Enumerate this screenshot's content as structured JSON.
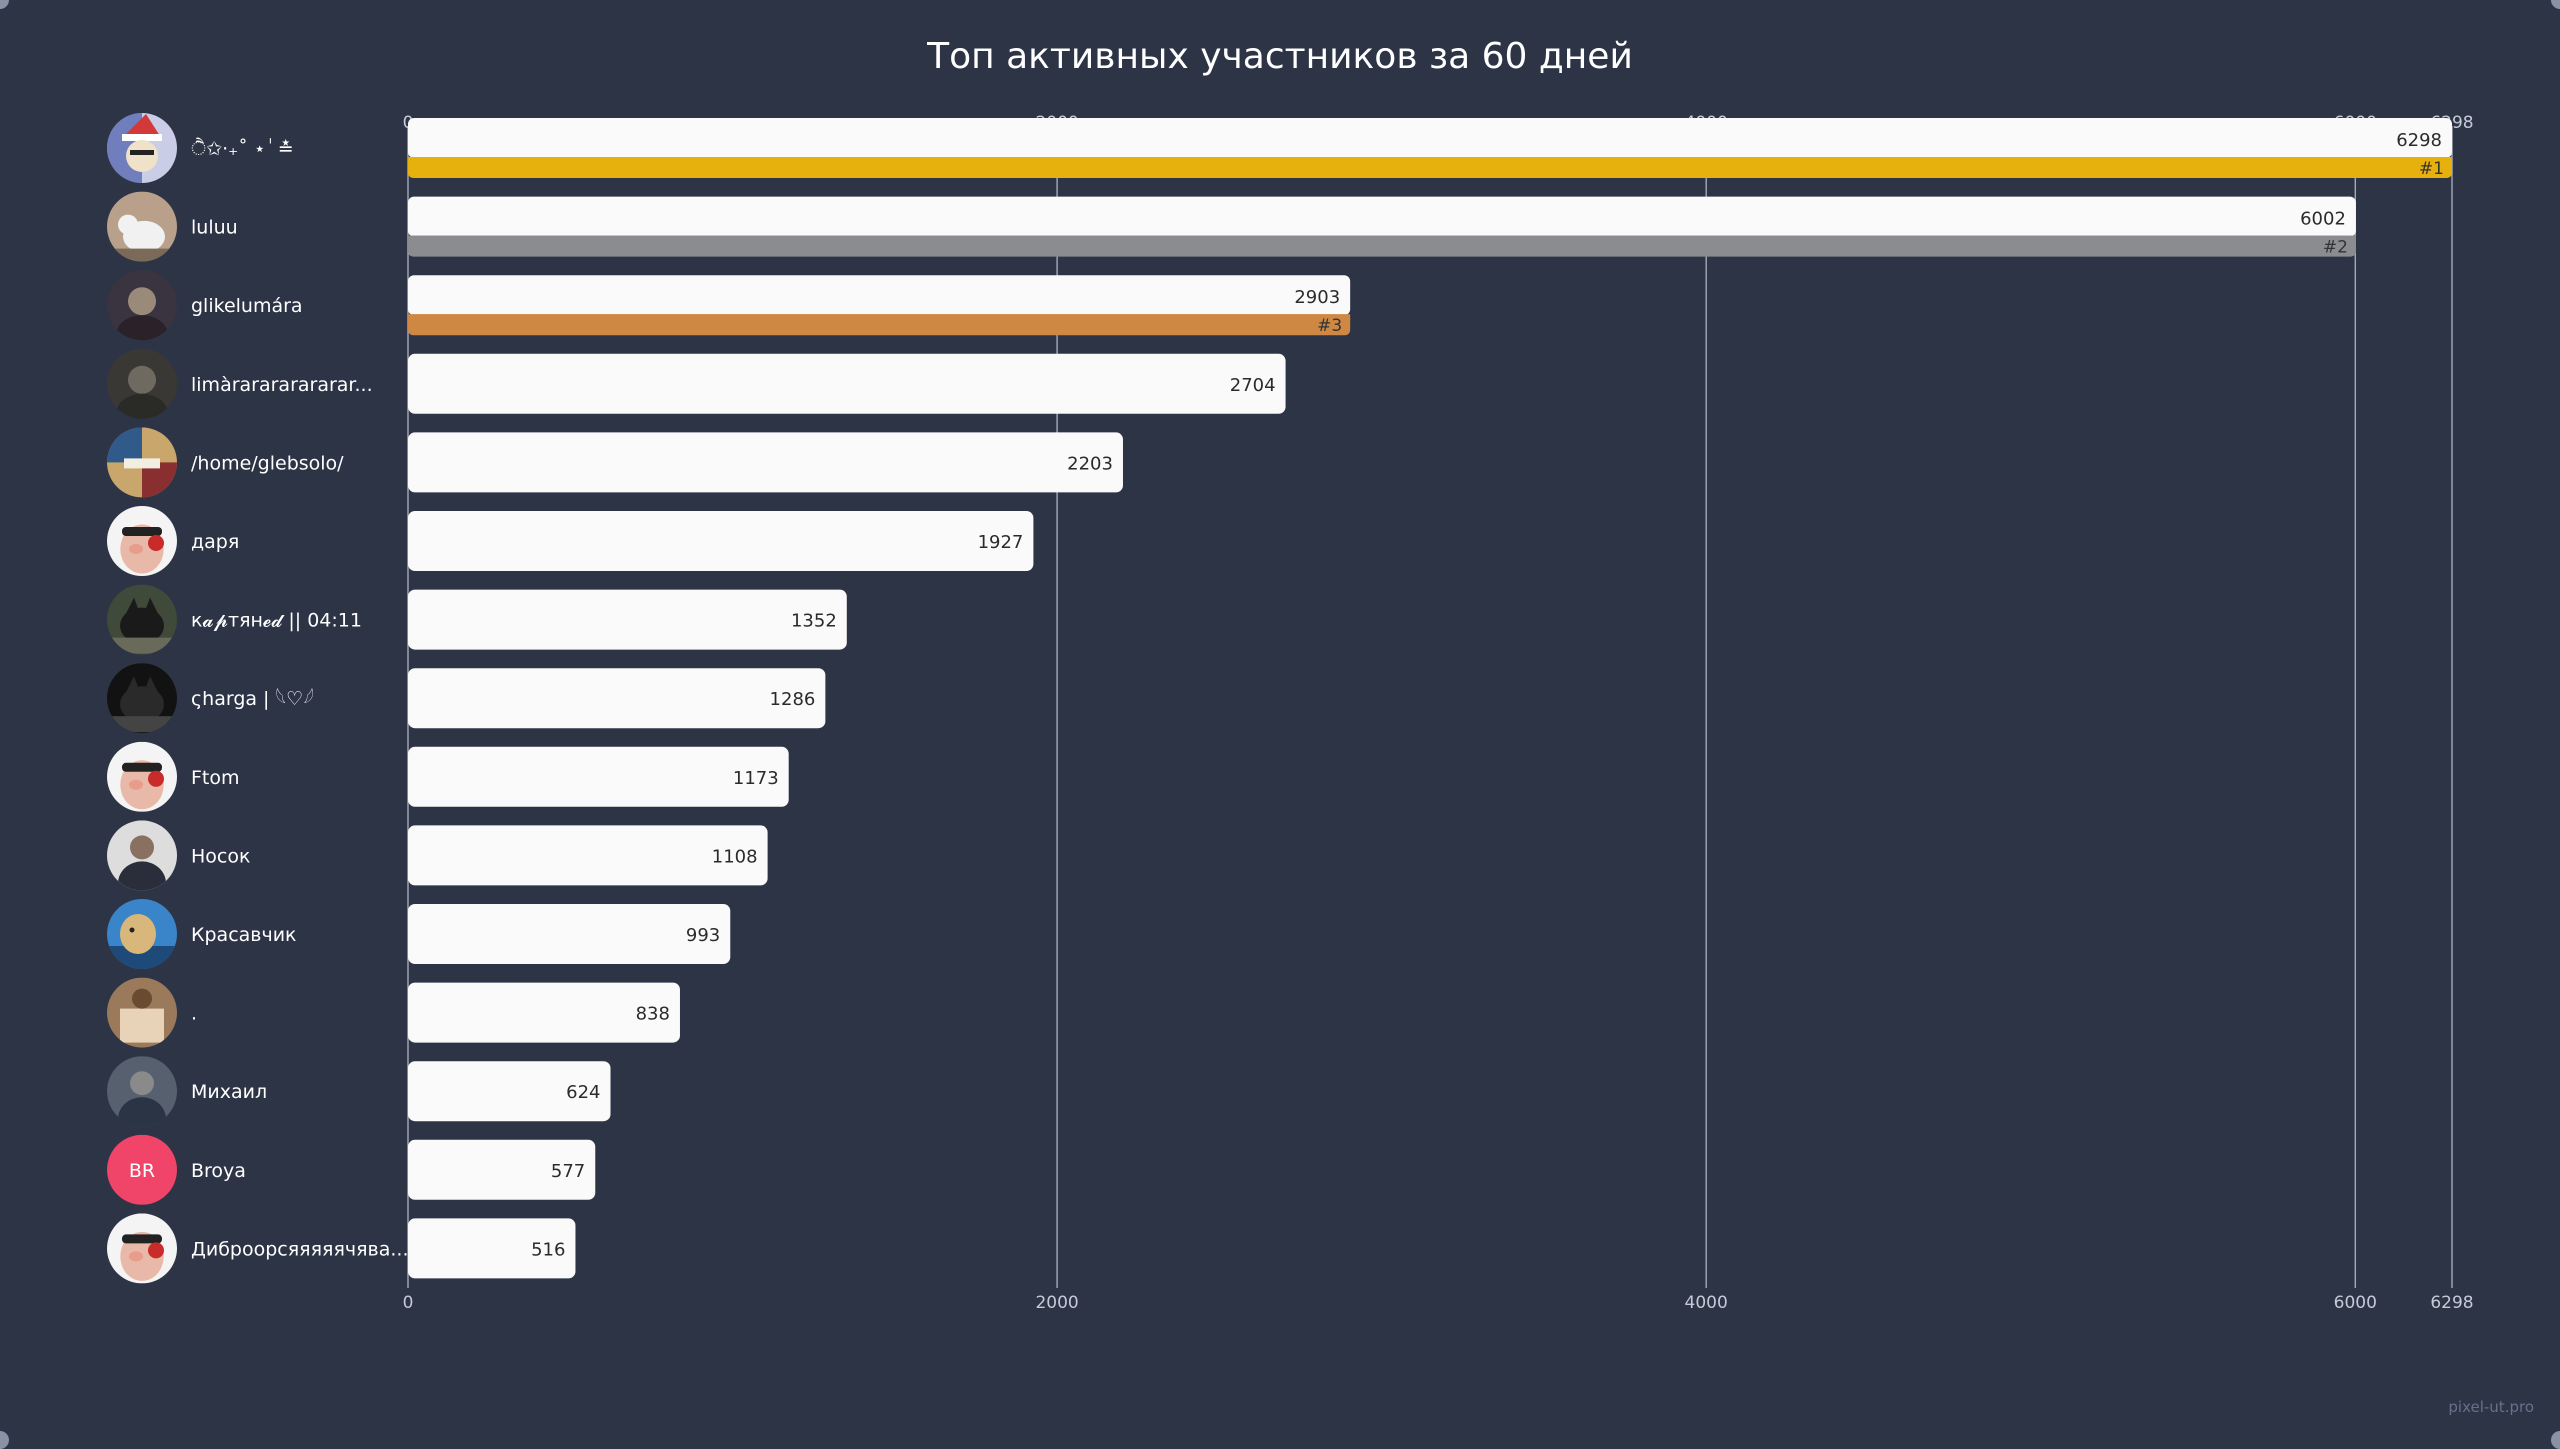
{
  "chart_data": {
    "type": "bar",
    "orientation": "horizontal",
    "title": "Топ активных участников за 60 дней",
    "xlim": [
      0,
      6298
    ],
    "xticks": [
      0,
      2000,
      4000,
      6000,
      6298
    ],
    "grid": true,
    "categories": [
      "ੈ✩‧₊˚ ⋆ ٰ ≛ ͏",
      "luluu",
      "glikelumára",
      "limàrarararararar...",
      "/home/glebsolo/",
      "даря",
      "к𝓪𝓹тян𝓮𝓭 || 04:11",
      "ςharga | 𓆩♡𓆪",
      "Ftom",
      "Носок",
      "Красавчик",
      ".",
      "Михаил",
      "Broya",
      "Диброорсяяяяячява..."
    ],
    "values": [
      6298,
      6002,
      2903,
      2704,
      2203,
      1927,
      1352,
      1286,
      1173,
      1108,
      993,
      838,
      624,
      577,
      516
    ],
    "ranks": [
      {
        "index": 0,
        "label": "#1",
        "color": "#e6b10c"
      },
      {
        "index": 1,
        "label": "#2",
        "color": "#8a8c90"
      },
      {
        "index": 2,
        "label": "#3",
        "color": "#cf8843"
      }
    ],
    "avatars": [
      {
        "type": "image",
        "icon": "santa-hat-avatar-icon",
        "colors": [
          "#c9cde6",
          "#4a5dab",
          "#d23a3a"
        ]
      },
      {
        "type": "image",
        "icon": "white-dog-avatar-icon",
        "colors": [
          "#b8a08a",
          "#f1f1f1",
          "#7c6a58"
        ]
      },
      {
        "type": "image",
        "icon": "portrait-avatar-icon",
        "colors": [
          "#3a3340",
          "#9a8a7a",
          "#2a2228"
        ]
      },
      {
        "type": "image",
        "icon": "dark-photo-avatar-icon",
        "colors": [
          "#3a3834",
          "#6e6a60",
          "#2a2a26"
        ]
      },
      {
        "type": "image",
        "icon": "collage-avatar-icon",
        "colors": [
          "#c9a66b",
          "#2f5a8a",
          "#8a2f2f"
        ]
      },
      {
        "type": "image",
        "icon": "pig-avatar-icon",
        "colors": [
          "#f4f4f4",
          "#e8b8a8",
          "#c92a2a"
        ]
      },
      {
        "type": "image",
        "icon": "black-cat-avatar-icon",
        "colors": [
          "#3f4a3a",
          "#1a1a1a",
          "#6a6a5a"
        ]
      },
      {
        "type": "image",
        "icon": "dark-cat-avatar-icon",
        "colors": [
          "#121212",
          "#2a2a2a",
          "#444"
        ]
      },
      {
        "type": "image",
        "icon": "pig-avatar-icon",
        "colors": [
          "#f4f4f4",
          "#e8b8a8",
          "#c92a2a"
        ]
      },
      {
        "type": "image",
        "icon": "man-avatar-icon",
        "colors": [
          "#dddddd",
          "#2a2e3a",
          "#8a7060"
        ]
      },
      {
        "type": "image",
        "icon": "doge-avatar-icon",
        "colors": [
          "#3a84c9",
          "#d9b77a",
          "#1e4a7a"
        ]
      },
      {
        "type": "image",
        "icon": "sign-avatar-icon",
        "colors": [
          "#9a7a5a",
          "#e8d2b8",
          "#6a4a30"
        ]
      },
      {
        "type": "image",
        "icon": "person-avatar-icon",
        "colors": [
          "#56606e",
          "#2a3444",
          "#8a8a8a"
        ]
      },
      {
        "type": "initials",
        "icon": "initials-avatar-icon",
        "text": "BR",
        "colors": [
          "#f04468",
          "#ffffff"
        ]
      },
      {
        "type": "image",
        "icon": "pig-avatar-icon",
        "colors": [
          "#f4f4f4",
          "#e8b8a8",
          "#c92a2a"
        ]
      }
    ]
  },
  "colors": {
    "background": "#2d3446",
    "bar": "#fafafa",
    "bar_text": "#2b2b2b",
    "grid": "#c5cad6",
    "tick_text": "#c5cad6",
    "title": "#ffffff",
    "name_text": "#ffffff"
  },
  "watermark": "pixel-ut.pro"
}
